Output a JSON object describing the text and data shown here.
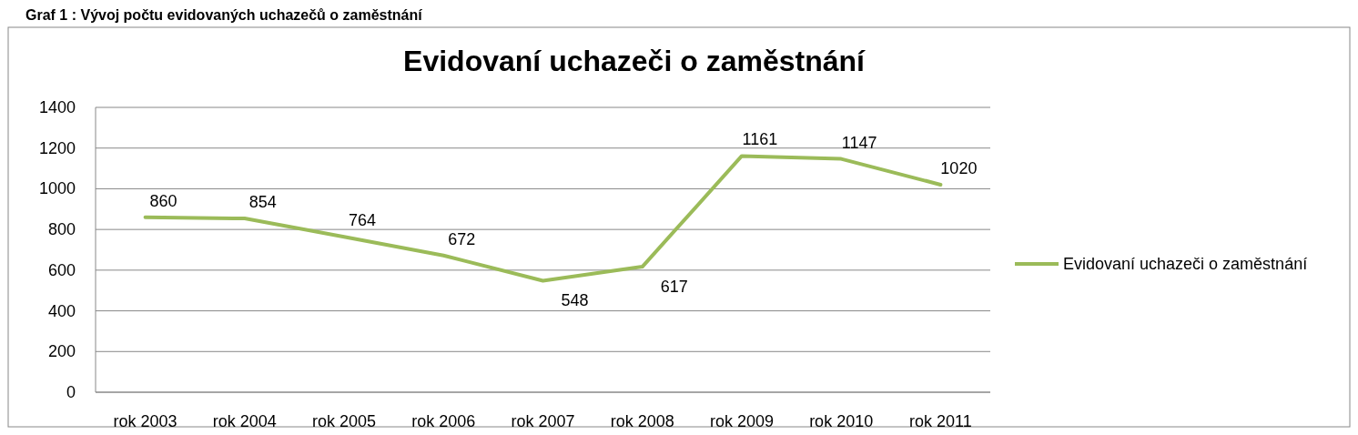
{
  "chart_data": {
    "type": "line",
    "title": "Evidovaní uchazeči o zaměstnání",
    "annotations": [
      "Graf 1 : Vývoj počtu evidovaných uchazečů o zaměstnání"
    ],
    "categories": [
      "rok 2003",
      "rok 2004",
      "rok 2005",
      "rok 2006",
      "rok 2007",
      "rok 2008",
      "rok 2009",
      "rok 2010",
      "rok 2011"
    ],
    "series": [
      {
        "name": "Evidovaní uchazeči o zaměstnání",
        "color": "#9bbb59",
        "values": [
          860,
          854,
          764,
          672,
          548,
          617,
          1161,
          1147,
          1020
        ]
      }
    ],
    "ylim": [
      0,
      1400
    ],
    "yticks": [
      0,
      200,
      400,
      600,
      800,
      1000,
      1200,
      1400
    ],
    "grid": "y",
    "legend": "right",
    "data_labels": true,
    "marker": "none",
    "line_style": "solid"
  }
}
